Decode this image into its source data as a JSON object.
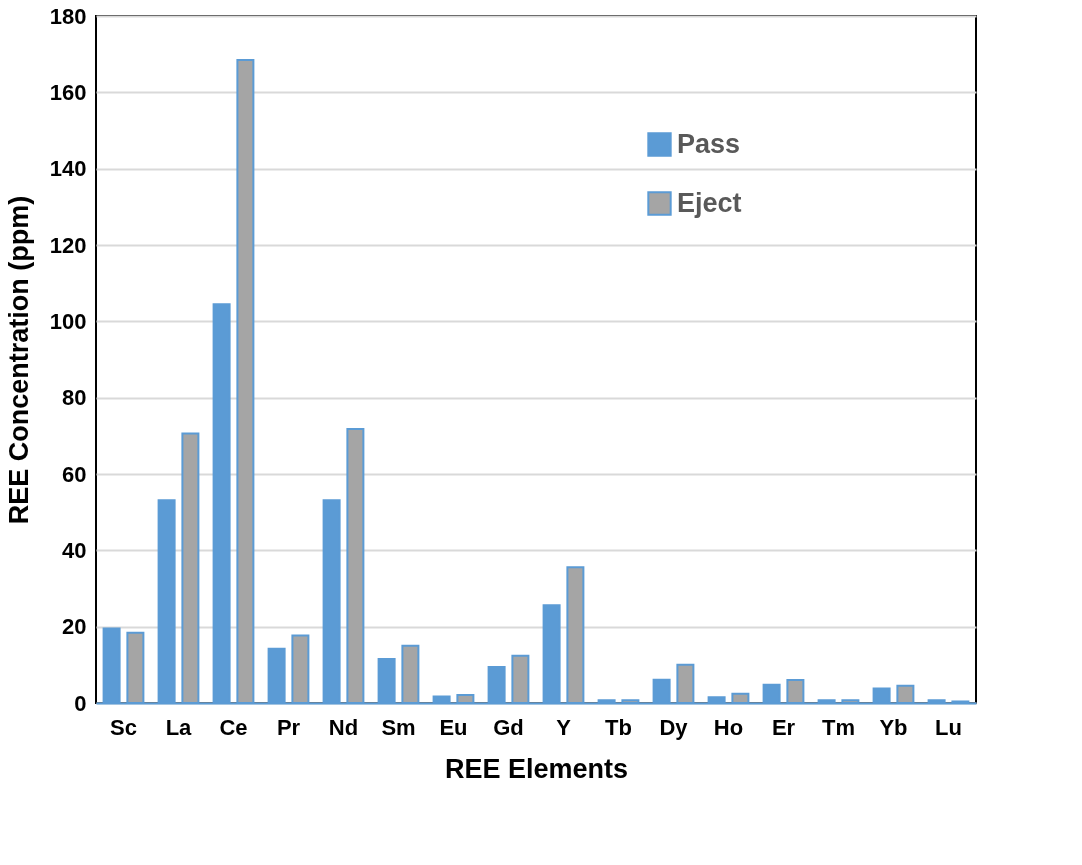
{
  "chart_data": {
    "type": "bar",
    "xlabel": "REE Elements",
    "ylabel": "REE Concentration (ppm)",
    "categories": [
      "Sc",
      "La",
      "Ce",
      "Pr",
      "Nd",
      "Sm",
      "Eu",
      "Gd",
      "Y",
      "Tb",
      "Dy",
      "Ho",
      "Er",
      "Tm",
      "Yb",
      "Lu"
    ],
    "series": [
      {
        "name": "Pass",
        "color": "#5b9bd5",
        "values": [
          19.5,
          53.1,
          104.5,
          14.2,
          53.1,
          11.5,
          1.7,
          9.4,
          25.6,
          0.7,
          6.1,
          1.5,
          4.8,
          0.7,
          3.8,
          0.7
        ]
      },
      {
        "name": "Eject",
        "color": "#a5a5a5",
        "values": [
          18.4,
          70.6,
          168.5,
          17.7,
          71.8,
          15.0,
          2.1,
          12.4,
          35.6,
          0.7,
          10.0,
          2.4,
          6.0,
          0.7,
          4.5,
          0.4
        ]
      }
    ],
    "ylim": [
      0,
      180
    ],
    "yticks": [
      0,
      20,
      40,
      60,
      80,
      100,
      120,
      140,
      160,
      180
    ],
    "grid": "y",
    "legend": "top right"
  }
}
